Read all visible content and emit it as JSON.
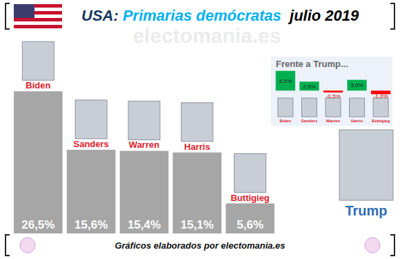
{
  "chart_data": [
    {
      "type": "bar",
      "title": "USA: Primarias demócratas  julio 2019",
      "categories": [
        "Biden",
        "Sanders",
        "Warren",
        "Harris",
        "Buttigieg"
      ],
      "values": [
        26.5,
        15.6,
        15.4,
        15.1,
        5.6
      ],
      "value_labels": [
        "26,5%",
        "15,6%",
        "15,4%",
        "15,1%",
        "5,6%"
      ],
      "color": "#a6a6a6",
      "ylim": [
        0,
        30
      ],
      "data_labels": true,
      "tick_labels": "x",
      "annotations": [
        "electomania.es",
        "Trump",
        "Gráficos elaborados por electomania.es"
      ]
    },
    {
      "type": "bar",
      "title": "Frente a Trump...",
      "categories": [
        "Biden",
        "Sanders",
        "Warren",
        "Harris",
        "Buttigieg"
      ],
      "values": [
        5.5,
        2.5,
        -0.5,
        3.0,
        -1.0
      ],
      "value_labels": [
        "5,5%",
        "2,5%",
        "-0,5%",
        "3,0%",
        "-1,0%"
      ],
      "colors": [
        "#00b050",
        "#00b050",
        "#ff0000",
        "#00b050",
        "#ff0000"
      ],
      "ylim": [
        -4,
        6
      ],
      "data_labels": true,
      "tick_labels": "x"
    }
  ]
}
